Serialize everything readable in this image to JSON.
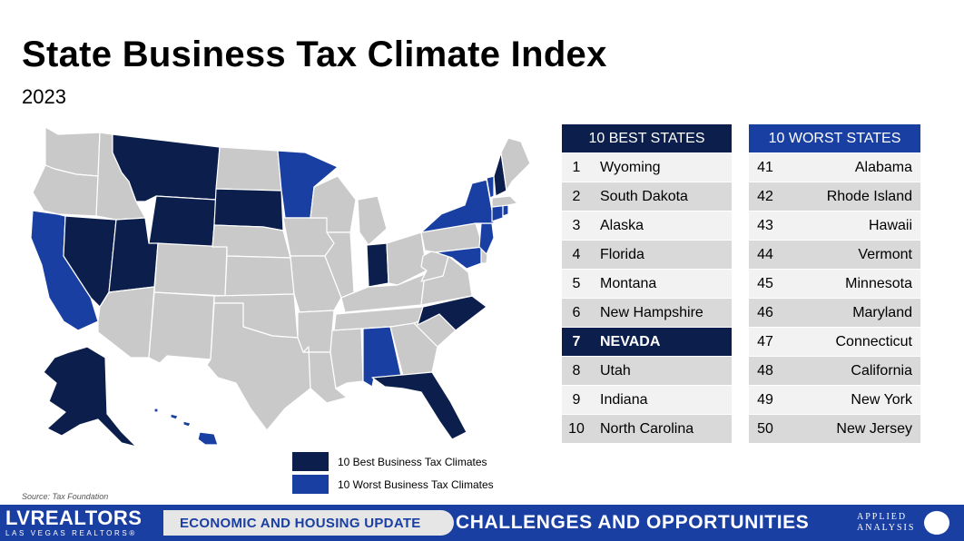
{
  "title": "State Business Tax Climate Index",
  "subtitle": "2023",
  "best_table": {
    "header": "10 BEST STATES",
    "rows": [
      {
        "rank": "1",
        "state": "Wyoming"
      },
      {
        "rank": "2",
        "state": "South Dakota"
      },
      {
        "rank": "3",
        "state": "Alaska"
      },
      {
        "rank": "4",
        "state": "Florida"
      },
      {
        "rank": "5",
        "state": "Montana"
      },
      {
        "rank": "6",
        "state": "New Hampshire"
      },
      {
        "rank": "7",
        "state": "NEVADA"
      },
      {
        "rank": "8",
        "state": "Utah"
      },
      {
        "rank": "9",
        "state": "Indiana"
      },
      {
        "rank": "10",
        "state": "North Carolina"
      }
    ]
  },
  "worst_table": {
    "header": "10 WORST STATES",
    "rows": [
      {
        "rank": "41",
        "state": "Alabama"
      },
      {
        "rank": "42",
        "state": "Rhode Island"
      },
      {
        "rank": "43",
        "state": "Hawaii"
      },
      {
        "rank": "44",
        "state": "Vermont"
      },
      {
        "rank": "45",
        "state": "Minnesota"
      },
      {
        "rank": "46",
        "state": "Maryland"
      },
      {
        "rank": "47",
        "state": "Connecticut"
      },
      {
        "rank": "48",
        "state": "California"
      },
      {
        "rank": "49",
        "state": "New York"
      },
      {
        "rank": "50",
        "state": "New Jersey"
      }
    ]
  },
  "legend": {
    "best_label": "10 Best Business Tax Climates",
    "worst_label": "10 Worst Business Tax Climates"
  },
  "colors": {
    "best": "#0c1f4c",
    "worst": "#1a3fa3",
    "other": "#c9c9c9",
    "border": "#ffffff"
  },
  "source": "Source: Tax Foundation",
  "footer": {
    "logo_main": "LVREALTORS",
    "logo_sub": "LAS VEGAS REALTORS®",
    "band1": "ECONOMIC AND HOUSING UPDATE",
    "band2": "CHALLENGES AND OPPORTUNITIES",
    "applied_line1": "APPLIED",
    "applied_line2": "ANALYSIS"
  }
}
